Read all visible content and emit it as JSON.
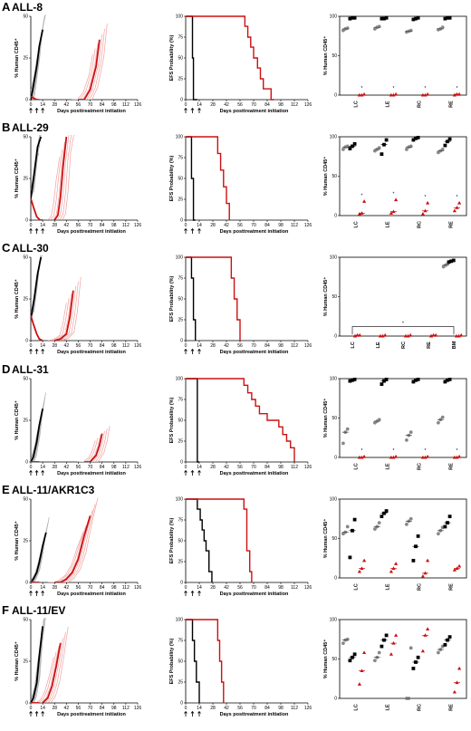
{
  "figure": {
    "xlabel": "Days posttreatment initiation",
    "ylabel_left": "% Human CD45⁺",
    "ylabel_mid": "EFS Probability (%)",
    "ylabel_right": "% Human CD45⁺",
    "x_ticks": [
      "0",
      "14",
      "28",
      "42",
      "56",
      "70",
      "84",
      "98",
      "112",
      "126"
    ],
    "y_ticks": [
      "0",
      "50",
      "100"
    ],
    "efs_y_ticks": [
      "0",
      "25",
      "50",
      "75",
      "100"
    ],
    "asterisk": "*",
    "colors": {
      "control": "#000000",
      "treated": "#cc1111",
      "control_light": "#aaaaaa",
      "treated_light": "#f2a0a0",
      "baseline_gray": "#888888"
    }
  },
  "chart_data": [
    {
      "panel": "A",
      "title": "ALL-8",
      "type": "line",
      "xlim": [
        0,
        126
      ],
      "ylim": [
        0,
        50
      ],
      "series": [
        {
          "values_x": [
            0,
            3,
            7,
            10,
            14
          ],
          "values_y": [
            0,
            8,
            20,
            32,
            42
          ]
        },
        {
          "values_x": [
            0,
            3,
            7,
            10
          ],
          "values_y": [
            2,
            1,
            0,
            0
          ]
        },
        {
          "values_x": [
            56,
            63,
            70,
            77,
            81
          ],
          "values_y": [
            0,
            0,
            6,
            20,
            36
          ]
        }
      ],
      "efs": {
        "control_x": [
          0,
          5,
          7,
          8,
          10,
          12
        ],
        "control_y": [
          100,
          100,
          50,
          0,
          0,
          0
        ],
        "treated_x": [
          0,
          58,
          61,
          64,
          67,
          70,
          74,
          77,
          80,
          84,
          88,
          91
        ],
        "treated_y": [
          100,
          100,
          88,
          75,
          63,
          50,
          38,
          25,
          13,
          13,
          0,
          0
        ]
      },
      "tissue": {
        "categories": [
          "LC",
          "LE",
          "RC",
          "RE"
        ],
        "ylim": [
          0,
          100
        ],
        "control_gray": [
          [
            82,
            84,
            85
          ],
          [
            84,
            86,
            87
          ],
          [
            80,
            81,
            82
          ],
          [
            83,
            84,
            86
          ]
        ],
        "control_black": [
          [
            97,
            98,
            98
          ],
          [
            97,
            97,
            98
          ],
          [
            96,
            97,
            98
          ],
          [
            97,
            98,
            98
          ]
        ],
        "treated": [
          [
            0,
            0,
            1
          ],
          [
            0,
            0,
            1
          ],
          [
            0,
            0,
            1
          ],
          [
            0,
            1,
            1
          ]
        ],
        "asterisks": true
      }
    },
    {
      "panel": "B",
      "title": "ALL-29",
      "type": "line",
      "xlim": [
        0,
        126
      ],
      "ylim": [
        0,
        50
      ],
      "series": [
        {
          "values_x": [
            0,
            4,
            8,
            12
          ],
          "values_y": [
            13,
            28,
            44,
            50
          ]
        },
        {
          "values_x": [
            0,
            3,
            7,
            11,
            14
          ],
          "values_y": [
            13,
            8,
            2,
            0,
            0
          ]
        },
        {
          "values_x": [
            28,
            32,
            35,
            38,
            42
          ],
          "values_y": [
            0,
            3,
            14,
            32,
            50
          ]
        }
      ],
      "efs": {
        "control_x": [
          0,
          4,
          6,
          8,
          10
        ],
        "control_y": [
          100,
          100,
          50,
          0,
          0
        ],
        "treated_x": [
          0,
          30,
          33,
          36,
          39,
          42,
          45
        ],
        "treated_y": [
          100,
          100,
          80,
          60,
          40,
          20,
          0
        ]
      },
      "tissue": {
        "categories": [
          "LC",
          "LE",
          "RC",
          "RE"
        ],
        "ylim": [
          0,
          100
        ],
        "control_gray": [
          [
            84,
            87,
            88
          ],
          [
            82,
            84,
            86
          ],
          [
            84,
            87,
            88
          ],
          [
            80,
            82,
            84
          ]
        ],
        "control_black": [
          [
            85,
            88,
            91
          ],
          [
            78,
            90,
            96
          ],
          [
            96,
            98,
            99
          ],
          [
            89,
            94,
            97
          ]
        ],
        "treated": [
          [
            2,
            3,
            18
          ],
          [
            3,
            5,
            20
          ],
          [
            2,
            6,
            16
          ],
          [
            6,
            10,
            16
          ]
        ],
        "asterisks": true
      }
    },
    {
      "panel": "C",
      "title": "ALL-30",
      "type": "line",
      "xlim": [
        0,
        126
      ],
      "ylim": [
        0,
        50
      ],
      "series": [
        {
          "values_x": [
            0,
            4,
            8,
            12
          ],
          "values_y": [
            13,
            25,
            40,
            50
          ]
        },
        {
          "values_x": [
            0,
            3,
            7,
            10,
            14
          ],
          "values_y": [
            15,
            10,
            4,
            1,
            0
          ]
        },
        {
          "values_x": [
            28,
            35,
            42,
            46,
            50
          ],
          "values_y": [
            0,
            1,
            4,
            14,
            30
          ]
        }
      ],
      "efs": {
        "control_x": [
          0,
          4,
          6,
          8,
          10
        ],
        "control_y": [
          100,
          100,
          75,
          25,
          0
        ],
        "treated_x": [
          0,
          44,
          47,
          50,
          53,
          56
        ],
        "treated_y": [
          100,
          100,
          75,
          50,
          25,
          0
        ]
      },
      "tissue": {
        "categories": [
          "LC",
          "LE",
          "RC",
          "RE",
          "BM"
        ],
        "ylim": [
          0,
          100
        ],
        "control_gray": [
          [],
          [],
          [],
          [],
          [
            88,
            90,
            92
          ]
        ],
        "control_black": [
          [],
          [],
          [],
          [],
          [
            94,
            95,
            96
          ]
        ],
        "treated": [
          [
            0,
            1,
            1
          ],
          [
            0,
            0,
            1
          ],
          [
            0,
            0,
            1
          ],
          [
            0,
            1,
            1
          ],
          [
            0,
            0,
            1
          ]
        ],
        "asterisks": true,
        "bracket": true
      }
    },
    {
      "panel": "D",
      "title": "ALL-31",
      "type": "line",
      "xlim": [
        0,
        126
      ],
      "ylim": [
        0,
        50
      ],
      "series": [
        {
          "values_x": [
            0,
            3,
            7,
            10,
            14
          ],
          "values_y": [
            0,
            3,
            12,
            22,
            32
          ]
        },
        {
          "values_x": [
            0,
            3,
            7,
            10
          ],
          "values_y": [
            0,
            0,
            0,
            0
          ]
        },
        {
          "values_x": [
            63,
            70,
            77,
            81,
            84
          ],
          "values_y": [
            0,
            0,
            4,
            10,
            17
          ]
        }
      ],
      "efs": {
        "control_x": [
          0,
          10,
          12,
          14
        ],
        "control_y": [
          100,
          100,
          0,
          0
        ],
        "treated_x": [
          0,
          56,
          60,
          64,
          68,
          72,
          76,
          84,
          90,
          96,
          100,
          104,
          108,
          112
        ],
        "treated_y": [
          100,
          100,
          92,
          83,
          75,
          67,
          58,
          50,
          50,
          42,
          33,
          25,
          17,
          0
        ]
      },
      "tissue": {
        "categories": [
          "LC",
          "LE",
          "RC",
          "RE"
        ],
        "ylim": [
          0,
          100
        ],
        "control_gray": [
          [
            18,
            32,
            36
          ],
          [
            44,
            46,
            48
          ],
          [
            22,
            28,
            32
          ],
          [
            44,
            48,
            51
          ]
        ],
        "control_black": [
          [
            97,
            98,
            99
          ],
          [
            93,
            97,
            99
          ],
          [
            96,
            98,
            99
          ],
          [
            96,
            98,
            99
          ]
        ],
        "treated": [
          [
            0,
            0,
            1
          ],
          [
            0,
            0,
            1
          ],
          [
            0,
            0,
            1
          ],
          [
            0,
            0,
            1
          ]
        ],
        "asterisks": true
      }
    },
    {
      "panel": "E",
      "title": "ALL-11/AKR1C3",
      "type": "line",
      "xlim": [
        0,
        126
      ],
      "ylim": [
        0,
        50
      ],
      "series": [
        {
          "values_x": [
            0,
            3,
            7,
            10,
            14,
            18
          ],
          "values_y": [
            0,
            2,
            6,
            12,
            22,
            30
          ]
        },
        {
          "values_x": [
            0,
            3,
            7,
            10
          ],
          "values_y": [
            1,
            0,
            0,
            0
          ]
        },
        {
          "values_x": [
            28,
            35,
            42,
            49,
            56,
            63,
            70
          ],
          "values_y": [
            0,
            0,
            2,
            6,
            14,
            28,
            40
          ]
        }
      ],
      "efs": {
        "control_x": [
          0,
          10,
          12,
          15,
          17,
          19,
          21,
          24,
          27
        ],
        "control_y": [
          100,
          100,
          88,
          75,
          63,
          50,
          38,
          13,
          0
        ],
        "treated_x": [
          0,
          57,
          60,
          63,
          66,
          68
        ],
        "treated_y": [
          100,
          100,
          88,
          38,
          13,
          0
        ]
      },
      "tissue": {
        "categories": [
          "LC",
          "LE",
          "RC",
          "RE"
        ],
        "ylim": [
          0,
          100
        ],
        "control_gray": [
          [
            56,
            58,
            65
          ],
          [
            62,
            65,
            70
          ],
          [
            68,
            72,
            75
          ],
          [
            56,
            60,
            64
          ]
        ],
        "control_black": [
          [
            26,
            60,
            74
          ],
          [
            78,
            82,
            85
          ],
          [
            22,
            40,
            53
          ],
          [
            65,
            70,
            78
          ]
        ],
        "treated": [
          [
            8,
            12,
            22
          ],
          [
            8,
            12,
            18
          ],
          [
            2,
            6,
            22
          ],
          [
            10,
            12,
            15
          ]
        ],
        "asterisks": false
      }
    },
    {
      "panel": "F",
      "title": "ALL-11/EV",
      "type": "line",
      "xlim": [
        0,
        126
      ],
      "ylim": [
        0,
        50
      ],
      "series": [
        {
          "values_x": [
            0,
            3,
            7,
            10,
            14
          ],
          "values_y": [
            0,
            3,
            12,
            28,
            46
          ]
        },
        {
          "values_x": [
            0,
            3,
            7,
            10
          ],
          "values_y": [
            0,
            0,
            0,
            0
          ]
        },
        {
          "values_x": [
            14,
            20,
            25,
            30,
            35
          ],
          "values_y": [
            0,
            3,
            10,
            22,
            36
          ]
        }
      ],
      "efs": {
        "control_x": [
          0,
          5,
          7,
          9,
          11,
          14
        ],
        "control_y": [
          100,
          100,
          75,
          50,
          25,
          0
        ],
        "treated_x": [
          0,
          31,
          33,
          35,
          37,
          39
        ],
        "treated_y": [
          100,
          100,
          75,
          50,
          25,
          0
        ]
      },
      "tissue": {
        "categories": [
          "LC",
          "LE",
          "RC",
          "RE"
        ],
        "ylim": [
          0,
          100
        ],
        "control_gray": [
          [
            70,
            74,
            75
          ],
          [
            48,
            52,
            58
          ],
          [
            0,
            0,
            64
          ],
          [
            58,
            62,
            66
          ]
        ],
        "control_black": [
          [
            48,
            52,
            56
          ],
          [
            66,
            74,
            80
          ],
          [
            38,
            46,
            52
          ],
          [
            68,
            74,
            78
          ]
        ],
        "treated": [
          [
            18,
            35,
            58
          ],
          [
            56,
            70,
            80
          ],
          [
            60,
            80,
            88
          ],
          [
            8,
            20,
            38
          ]
        ],
        "asterisks": false
      }
    }
  ]
}
